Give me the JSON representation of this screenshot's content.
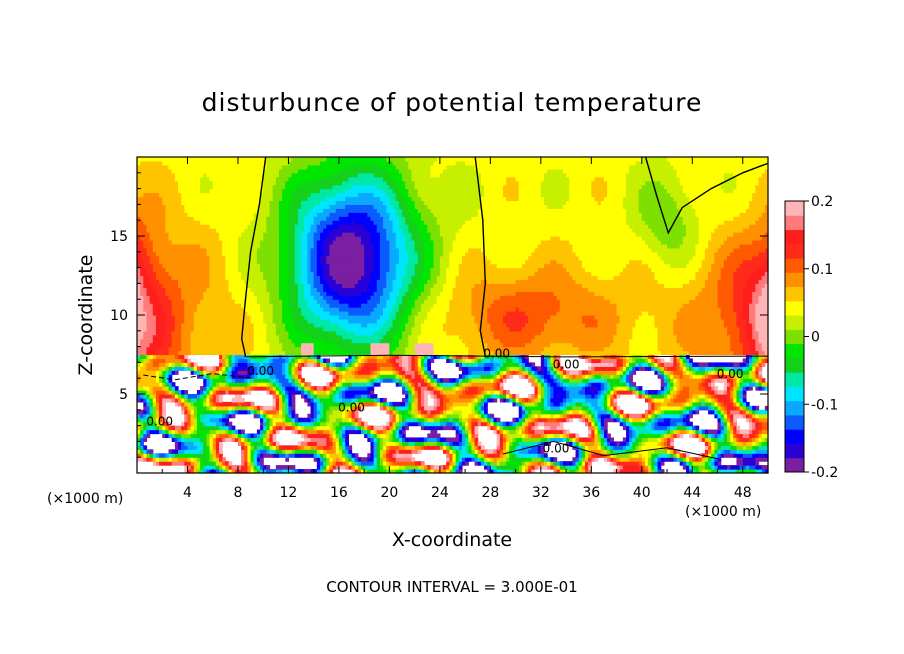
{
  "chart_data": {
    "type": "heatmap",
    "title": "disturbunce of potential temperature",
    "xlabel": "X-coordinate",
    "ylabel": "Z-coordinate",
    "x_unit": "(×1000 m)",
    "footer": "CONTOUR INTERVAL = 3.000E-01",
    "xlim": [
      0,
      50
    ],
    "ylim": [
      0,
      20
    ],
    "x_ticks": [
      4,
      8,
      12,
      16,
      20,
      24,
      28,
      32,
      36,
      40,
      44,
      48
    ],
    "y_ticks": [
      5,
      10,
      15
    ],
    "colorbar": {
      "range": [
        -0.2,
        0.2
      ],
      "ticks": [
        0.2,
        0.1,
        0,
        -0.1,
        -0.2
      ],
      "tick_labels": [
        "0.2",
        "0.1",
        "0",
        "-0.1",
        "-0.2"
      ],
      "colors": [
        "#7a1fa2",
        "#2a00d4",
        "#0000ff",
        "#0b5bff",
        "#0aa8ff",
        "#00e5ff",
        "#00e8a6",
        "#14d01a",
        "#00e600",
        "#7de000",
        "#c6f000",
        "#ffff00",
        "#ffc400",
        "#ff9000",
        "#ff5a00",
        "#ff2a1a",
        "#ff1e1e",
        "#ff7a7a",
        "#ffb5b5"
      ]
    },
    "contour_labels": [
      {
        "text": "0.00",
        "x": 28.5,
        "z": 7.3
      },
      {
        "text": "0.00",
        "x": 9.8,
        "z": 6.2
      },
      {
        "text": "0.00",
        "x": 17.0,
        "z": 3.9
      },
      {
        "text": "0.00",
        "x": 1.8,
        "z": 3.0
      },
      {
        "text": "0.00",
        "x": 33.2,
        "z": 1.3
      },
      {
        "text": "0.00",
        "x": 34.0,
        "z": 6.6
      },
      {
        "text": "0.00",
        "x": 47.0,
        "z": 6.0
      }
    ]
  }
}
